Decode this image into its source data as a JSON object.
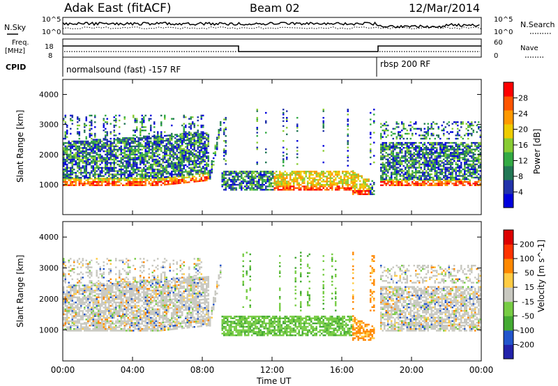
{
  "header": {
    "title": "Adak East (fitACF)",
    "beam": "Beam 02",
    "date": "12/Mar/2014"
  },
  "noise_panel": {
    "left_label": "N.Sky",
    "right_label": "N.Search",
    "y_ticks_left": [
      "10^5",
      "10^0"
    ],
    "y_ticks_right": [
      "10^5",
      "10^0"
    ]
  },
  "freq_panel": {
    "left_label_top": "Freq.",
    "left_label_bottom": "[MHz]",
    "right_label": "Nave",
    "y_ticks_left": [
      "18",
      "8"
    ],
    "y_ticks_right": [
      "60",
      "0"
    ]
  },
  "cpid": {
    "label": "CPID",
    "segments": [
      {
        "start_h": 0,
        "end_h": 18,
        "text": "normalsound (fast) -157 RF"
      },
      {
        "start_h": 18,
        "end_h": 24,
        "text": "rbsp 200 RF"
      }
    ]
  },
  "chart_data": [
    {
      "type": "heatmap",
      "name": "power",
      "ylabel": "Slant Range [km]",
      "ylim": [
        0,
        4500
      ],
      "yticks": [
        1000,
        2000,
        3000,
        4000
      ],
      "xlim": [
        0,
        24
      ],
      "colorbar": {
        "label": "Power [dB]",
        "ticks": [
          "4",
          "8",
          "12",
          "16",
          "20",
          "24",
          "28"
        ],
        "colors": [
          "#0000dd",
          "#2233aa",
          "#227755",
          "#33aa44",
          "#88cc33",
          "#eecc00",
          "#ff9900",
          "#ff5500",
          "#ff0000"
        ]
      }
    },
    {
      "type": "heatmap",
      "name": "velocity",
      "ylabel": "Slant Range [km]",
      "ylim": [
        0,
        4500
      ],
      "yticks": [
        1000,
        2000,
        3000,
        4000
      ],
      "xlim": [
        0,
        24
      ],
      "xlabel": "Time UT",
      "xticks": [
        "00:00",
        "04:00",
        "08:00",
        "12:00",
        "16:00",
        "20:00",
        "00:00"
      ],
      "colorbar": {
        "label": "Velocity [m s^-1]",
        "ticks": [
          "200",
          "100",
          "50",
          "15",
          "-15",
          "-50",
          "-100",
          "-200"
        ],
        "colors": [
          "#2222aa",
          "#2255cc",
          "#44aa33",
          "#77cc44",
          "#c8c8c0",
          "#ffcc44",
          "#ff8800",
          "#ff3300",
          "#dd0000"
        ]
      }
    }
  ]
}
